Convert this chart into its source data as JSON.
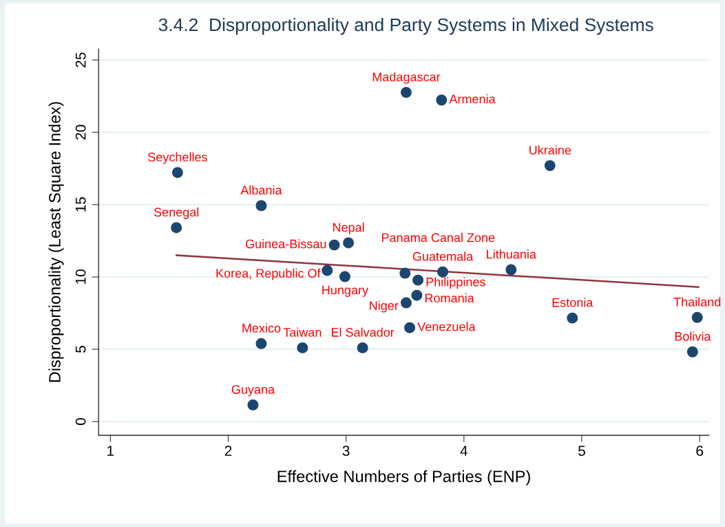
{
  "chart_data": {
    "type": "scatter",
    "title": "3.4.2  Disproportionality and Party Systems in Mixed Systems",
    "xlabel": "Effective Numbers of Parties (ENP)",
    "ylabel": "Disproportionality (Least Square Index)",
    "xlim": [
      0.9,
      6.08
    ],
    "ylim": [
      -0.95,
      25.76
    ],
    "xticks": [
      1,
      2,
      3,
      4,
      5,
      6
    ],
    "yticks": [
      0,
      5,
      10,
      15,
      20,
      25
    ],
    "grid": "y",
    "legend": false,
    "series": [
      {
        "color": "#1a476f",
        "marker": "circle",
        "x": [
          3.51,
          3.81,
          4.73,
          1.57,
          2.28,
          1.56,
          2.9,
          3.02,
          2.84,
          2.99,
          3.5,
          3.61,
          3.82,
          3.6,
          3.51,
          3.54,
          4.4,
          4.92,
          5.98,
          5.94,
          2.28,
          2.63,
          3.14,
          2.21
        ],
        "values": [
          22.76,
          22.23,
          17.7,
          17.22,
          14.93,
          13.41,
          12.21,
          12.36,
          10.45,
          10.02,
          10.26,
          9.78,
          10.35,
          8.73,
          8.21,
          6.49,
          10.5,
          7.16,
          7.2,
          4.82,
          5.39,
          5.1,
          5.1,
          1.15
        ]
      },
      {
        "type": "line",
        "color": "#90353b",
        "x": [
          1.56,
          5.99
        ],
        "values": [
          11.5,
          9.3
        ]
      }
    ],
    "annotations": [
      {
        "text": "Madagascar",
        "x": 3.51,
        "y": 22.76
      },
      {
        "text": "Armenia",
        "x": 3.81,
        "y": 22.23
      },
      {
        "text": "Ukraine",
        "x": 4.73,
        "y": 17.7
      },
      {
        "text": "Seychelles",
        "x": 1.57,
        "y": 17.22
      },
      {
        "text": "Albania",
        "x": 2.28,
        "y": 14.93
      },
      {
        "text": "Senegal",
        "x": 1.56,
        "y": 13.41
      },
      {
        "text": "Guinea-Bissau",
        "x": 2.9,
        "y": 12.21
      },
      {
        "text": "Nepal",
        "x": 3.02,
        "y": 12.36
      },
      {
        "text": "Korea, Republic Of",
        "x": 2.84,
        "y": 10.45
      },
      {
        "text": "Hungary",
        "x": 2.99,
        "y": 10.02
      },
      {
        "text": "Panama Canal Zone",
        "x": 3.5,
        "y": 10.26
      },
      {
        "text": "Philippines",
        "x": 3.61,
        "y": 9.78
      },
      {
        "text": "Guatemala",
        "x": 3.82,
        "y": 10.35
      },
      {
        "text": "Romania",
        "x": 3.6,
        "y": 8.73
      },
      {
        "text": "Niger",
        "x": 3.51,
        "y": 8.21
      },
      {
        "text": "Venezuela",
        "x": 3.54,
        "y": 6.49
      },
      {
        "text": "Lithuania",
        "x": 4.4,
        "y": 10.5
      },
      {
        "text": "Estonia",
        "x": 4.92,
        "y": 7.16
      },
      {
        "text": "Thailand",
        "x": 5.98,
        "y": 7.2
      },
      {
        "text": "Bolivia",
        "x": 5.94,
        "y": 4.82
      },
      {
        "text": "Mexico",
        "x": 2.28,
        "y": 5.39
      },
      {
        "text": "Taiwan",
        "x": 2.63,
        "y": 5.1
      },
      {
        "text": "El Salvador",
        "x": 3.14,
        "y": 5.1
      },
      {
        "text": "Guyana",
        "x": 2.21,
        "y": 1.15
      }
    ]
  }
}
